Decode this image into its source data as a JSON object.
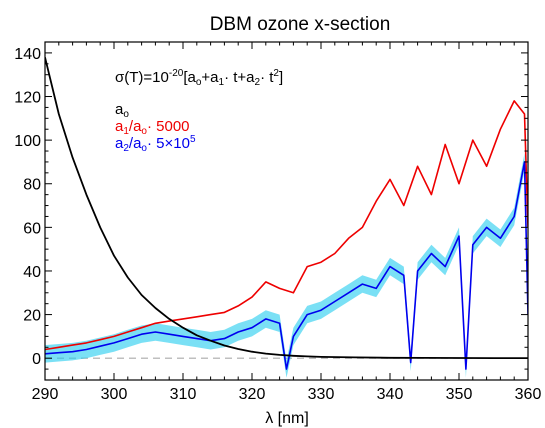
{
  "chart_data": {
    "type": "line",
    "title": "DBM ozone x-section",
    "xlabel": "λ [nm]",
    "ylabel": "",
    "xlim": [
      290,
      360
    ],
    "ylim": [
      -10,
      145
    ],
    "x_ticks": [
      "290",
      "300",
      "310",
      "320",
      "330",
      "340",
      "350",
      "360"
    ],
    "y_ticks": [
      "0",
      "20",
      "40",
      "60",
      "80",
      "100",
      "120",
      "140"
    ],
    "grid": false,
    "legend_position": "top-left",
    "formula": {
      "prefix": "σ(T)=10",
      "exp": "-20",
      "p1": "[a",
      "s1": "o",
      "p2": "+a",
      "s2": "1",
      "p3": "· t+a",
      "s3": "2",
      "p4": "· t",
      "s4": "2",
      "p5": "]"
    },
    "legend": [
      {
        "base": "a",
        "sub": "o",
        "mid": "",
        "sub2": "",
        "tail": "",
        "sup": "",
        "color": "#000000"
      },
      {
        "base": "a",
        "sub": "1",
        "mid": "/a",
        "sub2": "o",
        "tail": "· 5000",
        "sup": "",
        "color": "#ee0000"
      },
      {
        "base": "a",
        "sub": "2",
        "mid": "/a",
        "sub2": "o",
        "tail": "· 5×10",
        "sup": "5",
        "color": "#0000ee"
      }
    ],
    "colors": {
      "a0": "#000000",
      "a1": "#ee0000",
      "a2": "#0000ee",
      "a2_band": "#22ccee",
      "zero_line": "#aaaaaa"
    },
    "series": [
      {
        "name": "a0",
        "x": [
          290,
          292,
          294,
          296,
          298,
          300,
          302,
          304,
          306,
          308,
          310,
          312,
          314,
          316,
          318,
          320,
          322,
          324,
          326,
          328,
          330,
          335,
          340,
          345,
          350,
          355,
          360
        ],
        "values": [
          138,
          112,
          92,
          75,
          60,
          47,
          37,
          29,
          23,
          18,
          14,
          10.5,
          8,
          5.8,
          4.2,
          3,
          2.1,
          1.5,
          1.1,
          0.8,
          0.6,
          0.35,
          0.2,
          0.12,
          0.08,
          0.05,
          0.03
        ]
      },
      {
        "name": "a1/ao · 5000",
        "x": [
          290,
          292,
          294,
          296,
          298,
          300,
          302,
          304,
          306,
          308,
          310,
          312,
          314,
          316,
          318,
          320,
          322,
          324,
          326,
          328,
          330,
          332,
          334,
          336,
          338,
          340,
          342,
          344,
          346,
          348,
          350,
          352,
          354,
          356,
          358,
          359.5,
          360
        ],
        "values": [
          4,
          5,
          6,
          7,
          8.5,
          10,
          12,
          14,
          16,
          17,
          18,
          19,
          20,
          21,
          24,
          28,
          35,
          32,
          30,
          42,
          44,
          48,
          55,
          60,
          72,
          82,
          70,
          88,
          75,
          98,
          80,
          100,
          88,
          105,
          118,
          112,
          60
        ]
      },
      {
        "name": "a2/ao · 5×10^5",
        "x": [
          290,
          292,
          294,
          296,
          298,
          300,
          302,
          304,
          306,
          308,
          310,
          312,
          314,
          316,
          318,
          320,
          322,
          324,
          325,
          326,
          328,
          330,
          332,
          334,
          336,
          338,
          340,
          342,
          343,
          344,
          346,
          348,
          350,
          351,
          352,
          354,
          356,
          358,
          359.5,
          360
        ],
        "values": [
          2,
          2.5,
          3,
          4,
          5.5,
          7,
          9,
          11,
          12,
          11,
          10,
          9,
          8,
          9,
          12,
          14,
          18,
          16,
          -5,
          10,
          20,
          22,
          26,
          30,
          34,
          32,
          42,
          38,
          -2,
          40,
          48,
          42,
          56,
          -5,
          52,
          60,
          55,
          65,
          90,
          20
        ]
      }
    ]
  }
}
